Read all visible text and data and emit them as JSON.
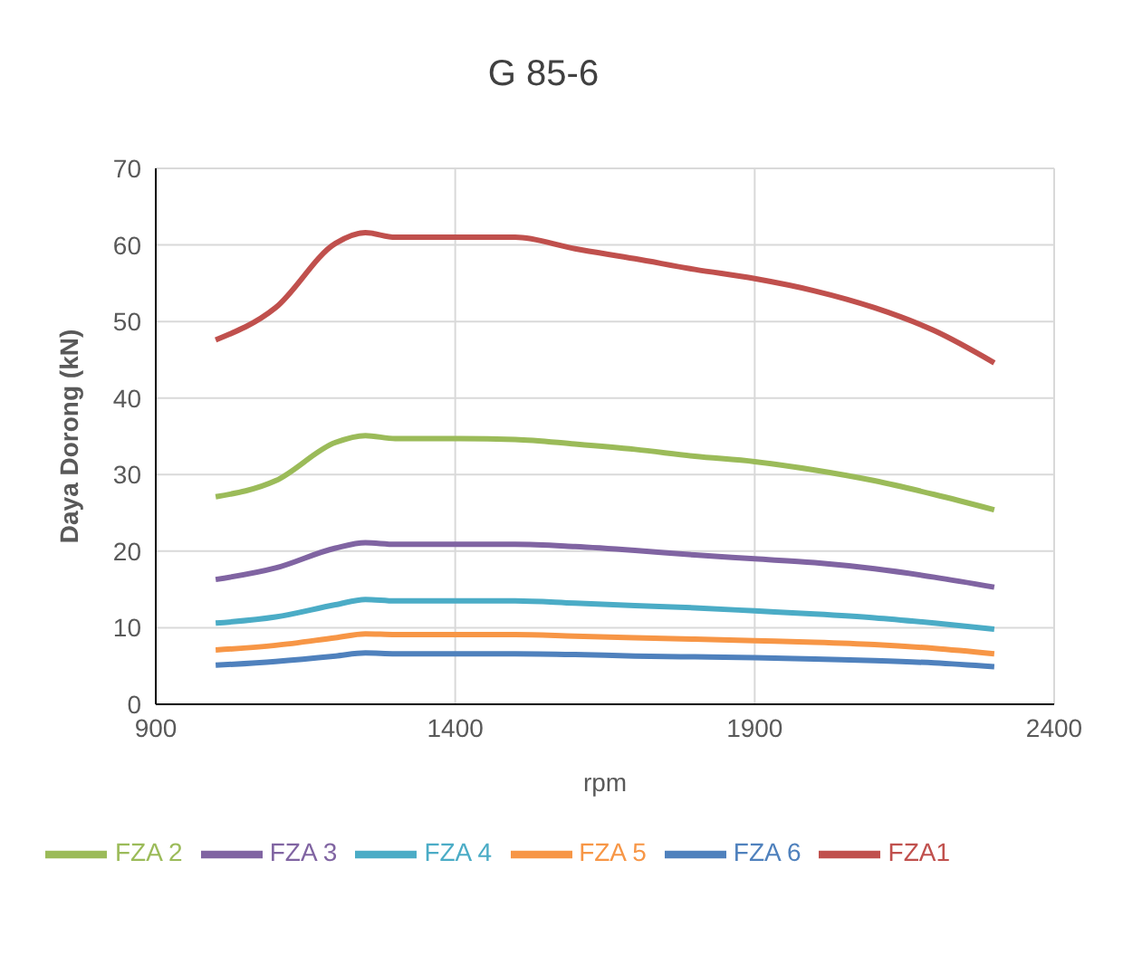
{
  "chart_data": {
    "type": "line",
    "title": "G 85-6",
    "xlabel": "rpm",
    "ylabel": "Daya Dorong (kN)",
    "x": [
      1000,
      1100,
      1200,
      1250,
      1300,
      1400,
      1500,
      1600,
      1700,
      1800,
      1900,
      2000,
      2100,
      2200,
      2300
    ],
    "series": [
      {
        "name": "FZA1",
        "color": "#c0504d",
        "values": [
          47.6,
          51.8,
          60.2,
          61.6,
          61.0,
          61.0,
          61.0,
          59.5,
          58.2,
          56.8,
          55.6,
          54.0,
          51.8,
          48.8,
          44.6
        ]
      },
      {
        "name": "FZA 2",
        "color": "#9bbb59",
        "values": [
          27.1,
          29.2,
          34.2,
          35.1,
          34.7,
          34.7,
          34.6,
          34.0,
          33.3,
          32.4,
          31.7,
          30.6,
          29.2,
          27.4,
          25.4
        ]
      },
      {
        "name": "FZA 3",
        "color": "#8064a2",
        "values": [
          16.3,
          17.8,
          20.4,
          21.1,
          20.9,
          20.9,
          20.9,
          20.6,
          20.1,
          19.5,
          19.0,
          18.5,
          17.7,
          16.6,
          15.3
        ]
      },
      {
        "name": "FZA 4",
        "color": "#4bacc6",
        "values": [
          10.6,
          11.4,
          13.0,
          13.7,
          13.5,
          13.5,
          13.5,
          13.2,
          12.9,
          12.6,
          12.2,
          11.8,
          11.3,
          10.6,
          9.8
        ]
      },
      {
        "name": "FZA 5",
        "color": "#f79646",
        "values": [
          7.1,
          7.7,
          8.7,
          9.2,
          9.1,
          9.1,
          9.1,
          8.9,
          8.7,
          8.5,
          8.3,
          8.1,
          7.8,
          7.3,
          6.6
        ]
      },
      {
        "name": "FZA 6",
        "color": "#4f81bd",
        "values": [
          5.1,
          5.6,
          6.3,
          6.7,
          6.6,
          6.6,
          6.6,
          6.5,
          6.3,
          6.2,
          6.1,
          5.9,
          5.7,
          5.4,
          4.9
        ]
      }
    ],
    "xlim": [
      900,
      2400
    ],
    "xticks": [
      900,
      1400,
      1900,
      2400
    ],
    "ylim": [
      0,
      70
    ],
    "yticks": [
      0,
      10,
      20,
      30,
      40,
      50,
      60,
      70
    ],
    "grid": true,
    "legend": "bottom",
    "marker": "none",
    "line_style": "solid"
  }
}
